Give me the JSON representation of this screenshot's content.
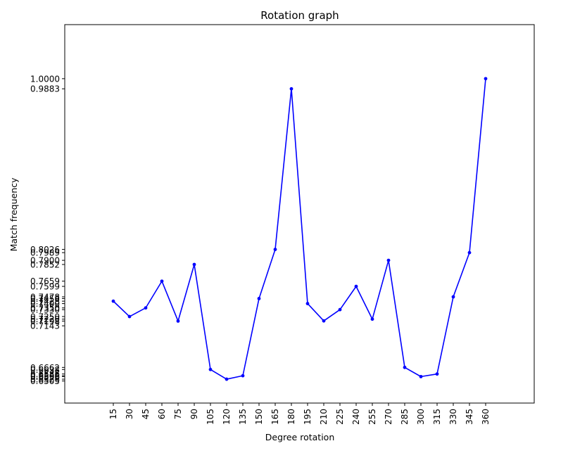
{
  "chart_data": {
    "type": "line",
    "title": "Rotation graph",
    "xlabel": "Degree rotation",
    "ylabel": "Match frequency",
    "x": [
      15,
      30,
      45,
      60,
      75,
      90,
      105,
      120,
      135,
      150,
      165,
      180,
      195,
      210,
      225,
      240,
      255,
      270,
      285,
      300,
      315,
      330,
      345,
      360
    ],
    "series": [
      {
        "name": "",
        "color": "#0000ff",
        "marker": "point",
        "values": [
          0.7428,
          0.725,
          0.735,
          0.7659,
          0.7198,
          0.7852,
          0.6638,
          0.6526,
          0.6566,
          0.7458,
          0.8026,
          0.9883,
          0.74,
          0.72,
          0.733,
          0.7599,
          0.722,
          0.79,
          0.6662,
          0.6556,
          0.6586,
          0.7478,
          0.7989,
          1.0
        ]
      }
    ],
    "yticks": [
      "0.6505",
      "0.6526",
      "0.6556",
      "0.6566",
      "0.6586",
      "0.6638",
      "0.6662",
      "0.7143",
      "0.7198",
      "0.7220",
      "0.7250",
      "0.7330",
      "0.7350",
      "0.7400",
      "0.7428",
      "0.7458",
      "0.7478",
      "0.7599",
      "0.7659",
      "0.7852",
      "0.7900",
      "0.7989",
      "0.8026",
      "0.9883",
      "1.0000"
    ],
    "xlim": [
      -30,
      405
    ],
    "ylim": [
      0.625,
      1.0625
    ],
    "grid": false,
    "legend": "none"
  }
}
